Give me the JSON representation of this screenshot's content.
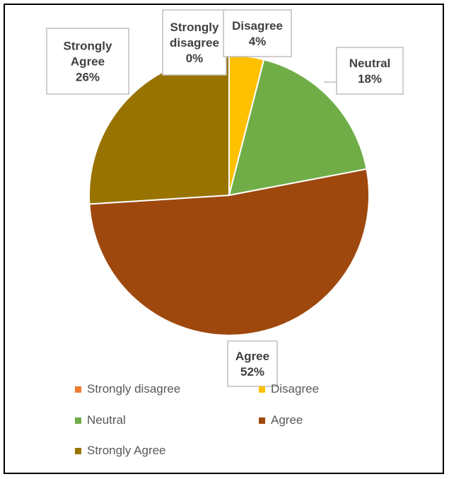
{
  "chart_data": {
    "type": "pie",
    "title": "",
    "categories": [
      "Strongly disagree",
      "Disagree",
      "Neutral",
      "Agree",
      "Strongly Agree"
    ],
    "values": [
      0,
      4,
      18,
      52,
      26
    ],
    "unit": "%",
    "data_labels": [
      {
        "category": "Strongly disagree",
        "lines": [
          "Strongly",
          "disagree",
          "0%"
        ]
      },
      {
        "category": "Disagree",
        "lines": [
          "Disagree",
          "4%"
        ]
      },
      {
        "category": "Neutral",
        "lines": [
          "Neutral",
          "18%"
        ]
      },
      {
        "category": "Agree",
        "lines": [
          "Agree",
          "52%"
        ]
      },
      {
        "category": "Strongly Agree",
        "lines": [
          "Strongly",
          "Agree",
          "26%"
        ]
      }
    ],
    "colors": [
      "#ED7D31",
      "#FFC000",
      "#70AD47",
      "#9E480E",
      "#997300"
    ],
    "legend": {
      "position": "bottom",
      "entries": [
        "Strongly disagree",
        "Disagree",
        "Neutral",
        "Agree",
        "Strongly Agree"
      ]
    }
  }
}
